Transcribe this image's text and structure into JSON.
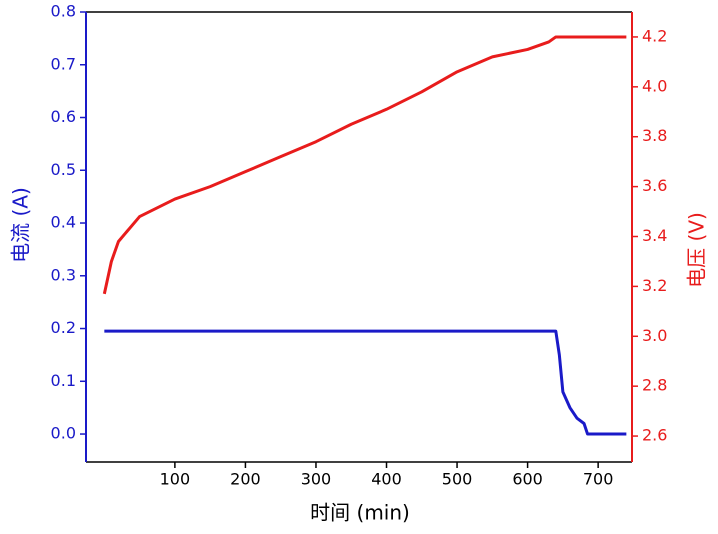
{
  "chart_data": {
    "type": "line",
    "xlabel": "时间 (min)",
    "ylabel": "电流 (A)",
    "y2label": "电压 (V)",
    "x": [
      0,
      10,
      20,
      50,
      100,
      150,
      200,
      250,
      300,
      350,
      400,
      450,
      500,
      550,
      600,
      630,
      640,
      645,
      650,
      660,
      670,
      680,
      685,
      700,
      740
    ],
    "series": [
      {
        "name": "电流",
        "color": "#1a1ac8",
        "axis": "y",
        "values": [
          0.195,
          0.195,
          0.195,
          0.195,
          0.195,
          0.195,
          0.195,
          0.195,
          0.195,
          0.195,
          0.195,
          0.195,
          0.195,
          0.195,
          0.195,
          0.195,
          0.195,
          0.15,
          0.08,
          0.05,
          0.03,
          0.02,
          0,
          0,
          0
        ]
      },
      {
        "name": "电压",
        "color": "#e81c1c",
        "axis": "y2",
        "values": [
          3.17,
          3.3,
          3.38,
          3.48,
          3.55,
          3.6,
          3.66,
          3.72,
          3.78,
          3.85,
          3.91,
          3.98,
          4.06,
          4.12,
          4.15,
          4.18,
          4.2,
          4.2,
          4.2,
          4.2,
          4.2,
          4.2,
          4.2,
          4.2,
          4.2
        ]
      }
    ],
    "xlim": [
      -26,
      748
    ],
    "xticks": [
      100,
      200,
      300,
      400,
      500,
      600,
      700
    ],
    "ylim": [
      -0.053,
      0.8
    ],
    "yticks": [
      {
        "value": 0,
        "label": "0.0"
      },
      0.1,
      0.2,
      0.3,
      0.4,
      0.5,
      0.6,
      0.7,
      0.8
    ],
    "y2lim": [
      2.496,
      4.3
    ],
    "y2ticks": [
      2.6,
      2.8,
      {
        "value": 3,
        "label": "3.0"
      },
      3.2,
      3.4,
      3.6,
      3.8,
      {
        "value": 4,
        "label": "4.0"
      },
      4.2
    ],
    "ycolor": "#1a1ac8",
    "y2color": "#e81c1c"
  }
}
